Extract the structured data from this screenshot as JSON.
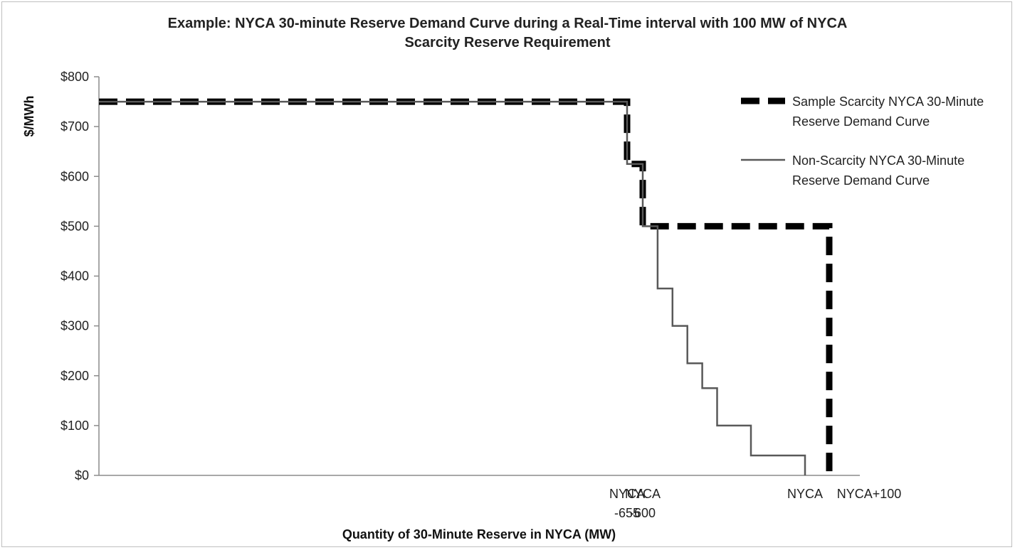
{
  "chart_data": {
    "type": "line",
    "title": "Example: NYCA 30-minute Reserve Demand Curve during a Real-Time interval with 100 MW of NYCA Scarcity Reserve Requirement",
    "title_lines": [
      "Example: NYCA 30-minute Reserve Demand Curve during a Real-Time interval with 100 MW of NYCA",
      "Scarcity Reserve Requirement"
    ],
    "xlabel": "Quantity of 30-Minute Reserve in NYCA (MW)",
    "ylabel": "$/MWh",
    "ylim": [
      0,
      800
    ],
    "yticks": [
      0,
      100,
      200,
      300,
      400,
      500,
      600,
      700,
      800
    ],
    "ytick_labels": [
      "$0",
      "$100",
      "$200",
      "$300",
      "$400",
      "$500",
      "$600",
      "$700",
      "$800"
    ],
    "xlim": [
      -3500,
      210
    ],
    "xticks": [
      {
        "x": -655,
        "lines": [
          "NYCA",
          "-655"
        ]
      },
      {
        "x": -600,
        "lines": [
          "NYCA",
          "-600"
        ]
      },
      {
        "x": 0,
        "lines": [
          "NYCA"
        ]
      },
      {
        "x": 100,
        "lines": [
          "NYCA+100"
        ]
      }
    ],
    "grid": false,
    "legend_position": "right",
    "series": [
      {
        "name_lines": [
          "Sample Scarcity NYCA 30-Minute",
          "Reserve Demand Curve"
        ],
        "color": "#000000",
        "style": "dashed",
        "points": [
          [
            -3500,
            750
          ],
          [
            -655,
            750
          ],
          [
            -655,
            625
          ],
          [
            -600,
            625
          ],
          [
            -600,
            500
          ],
          [
            100,
            500
          ],
          [
            100,
            0
          ]
        ]
      },
      {
        "name_lines": [
          "Non-Scarcity NYCA 30-Minute",
          "Reserve Demand Curve"
        ],
        "color": "#595959",
        "style": "solid",
        "points": [
          [
            -3500,
            750
          ],
          [
            -655,
            750
          ],
          [
            -655,
            625
          ],
          [
            -600,
            625
          ],
          [
            -600,
            500
          ],
          [
            -545,
            500
          ],
          [
            -545,
            375
          ],
          [
            -490,
            375
          ],
          [
            -490,
            300
          ],
          [
            -435,
            300
          ],
          [
            -435,
            225
          ],
          [
            -380,
            225
          ],
          [
            -380,
            175
          ],
          [
            -325,
            175
          ],
          [
            -325,
            100
          ],
          [
            -200,
            100
          ],
          [
            -200,
            40
          ],
          [
            0,
            40
          ],
          [
            0,
            0
          ]
        ]
      }
    ]
  }
}
